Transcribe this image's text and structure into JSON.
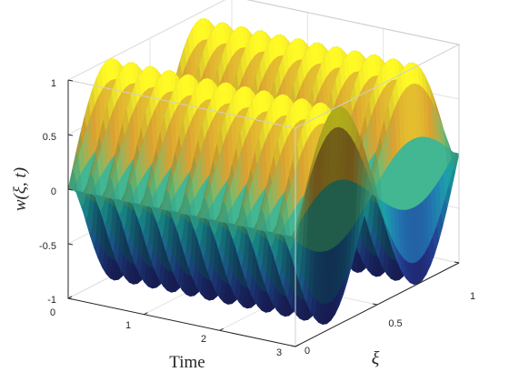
{
  "chart_data": {
    "type": "surface",
    "zlabel": "w(ξ, t)",
    "xlabel": "Time",
    "ylabel": "ξ",
    "xlim": [
      0,
      3
    ],
    "ylim": [
      0,
      1
    ],
    "zlim": [
      -1,
      1
    ],
    "x_ticks": [
      "0",
      "1",
      "2",
      "3"
    ],
    "y_ticks": [
      "0",
      "0.5",
      "1"
    ],
    "z_ticks": [
      "-1",
      "-0.5",
      "0",
      "0.5",
      "1"
    ],
    "surface": {
      "equation": "w = sin(2πξ) cos(2π·4·t)",
      "spatial_waves": 1,
      "temporal_frequency": 4
    },
    "colormap": [
      "#1c1a5b",
      "#223d8a",
      "#1e6fa0",
      "#1a9c9c",
      "#5fae6e",
      "#c7932c",
      "#d9cc2a",
      "#f5f31e"
    ],
    "grid": true,
    "box": true
  }
}
